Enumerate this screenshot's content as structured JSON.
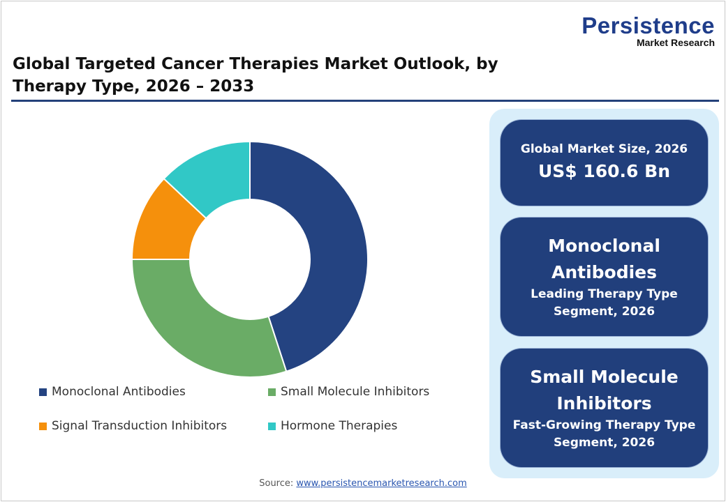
{
  "logo": {
    "main": "Persistence",
    "sub": "Market Research"
  },
  "title": "Global Targeted Cancer Therapies Market Outlook, by Therapy Type, 2026 – 2033",
  "chart_data": {
    "type": "pie",
    "subtype": "donut",
    "categories": [
      "Monoclonal Antibodies",
      "Small Molecule Inhibitors",
      "Signal Transduction Inhibitors",
      "Hormone Therapies"
    ],
    "values": [
      45,
      30,
      12,
      13
    ],
    "unit": "%",
    "colors": [
      "#244381",
      "#6aac66",
      "#f5900c",
      "#31c8c6"
    ],
    "legend_position": "bottom"
  },
  "cards": [
    {
      "line1": "Global Market Size, 2026",
      "line2": "US$ 160.6 Bn"
    },
    {
      "line1": "Monoclonal",
      "line2": "Antibodies",
      "line3": "Leading Therapy Type",
      "line4": "Segment, 2026"
    },
    {
      "line1": "Small Molecule",
      "line2": "Inhibitors",
      "line3": "Fast-Growing Therapy Type",
      "line4": "Segment, 2026"
    }
  ],
  "source": {
    "label": "Source:",
    "link": "www.persistencemarketresearch.com"
  }
}
